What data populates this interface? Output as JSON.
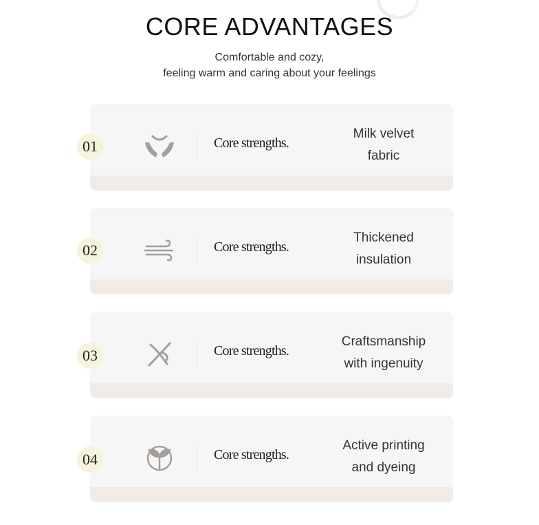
{
  "header": {
    "title": "CORE ADVANTAGES",
    "subtitle_line1": "Comfortable and cozy,",
    "subtitle_line2": "feeling warm and caring about your feelings"
  },
  "colors": {
    "card": "#f6f6f6",
    "band": "#f1ece8",
    "badge": "#f6f3dc",
    "icon": "#a59f9b"
  },
  "items": [
    {
      "number": "01",
      "icon": "hands-icon",
      "label": "Core strengths.",
      "feature_line1": "Milk velvet",
      "feature_line2": "fabric"
    },
    {
      "number": "02",
      "icon": "wind-icon",
      "label": "Core strengths.",
      "feature_line1": "Thickened",
      "feature_line2": "insulation"
    },
    {
      "number": "03",
      "icon": "needle-thread-icon",
      "label": "Core strengths.",
      "feature_line1": "Craftsmanship",
      "feature_line2": "with ingenuity"
    },
    {
      "number": "04",
      "icon": "leaf-circle-icon",
      "label": "Core strengths.",
      "feature_line1": "Active printing",
      "feature_line2": "and dyeing"
    }
  ]
}
